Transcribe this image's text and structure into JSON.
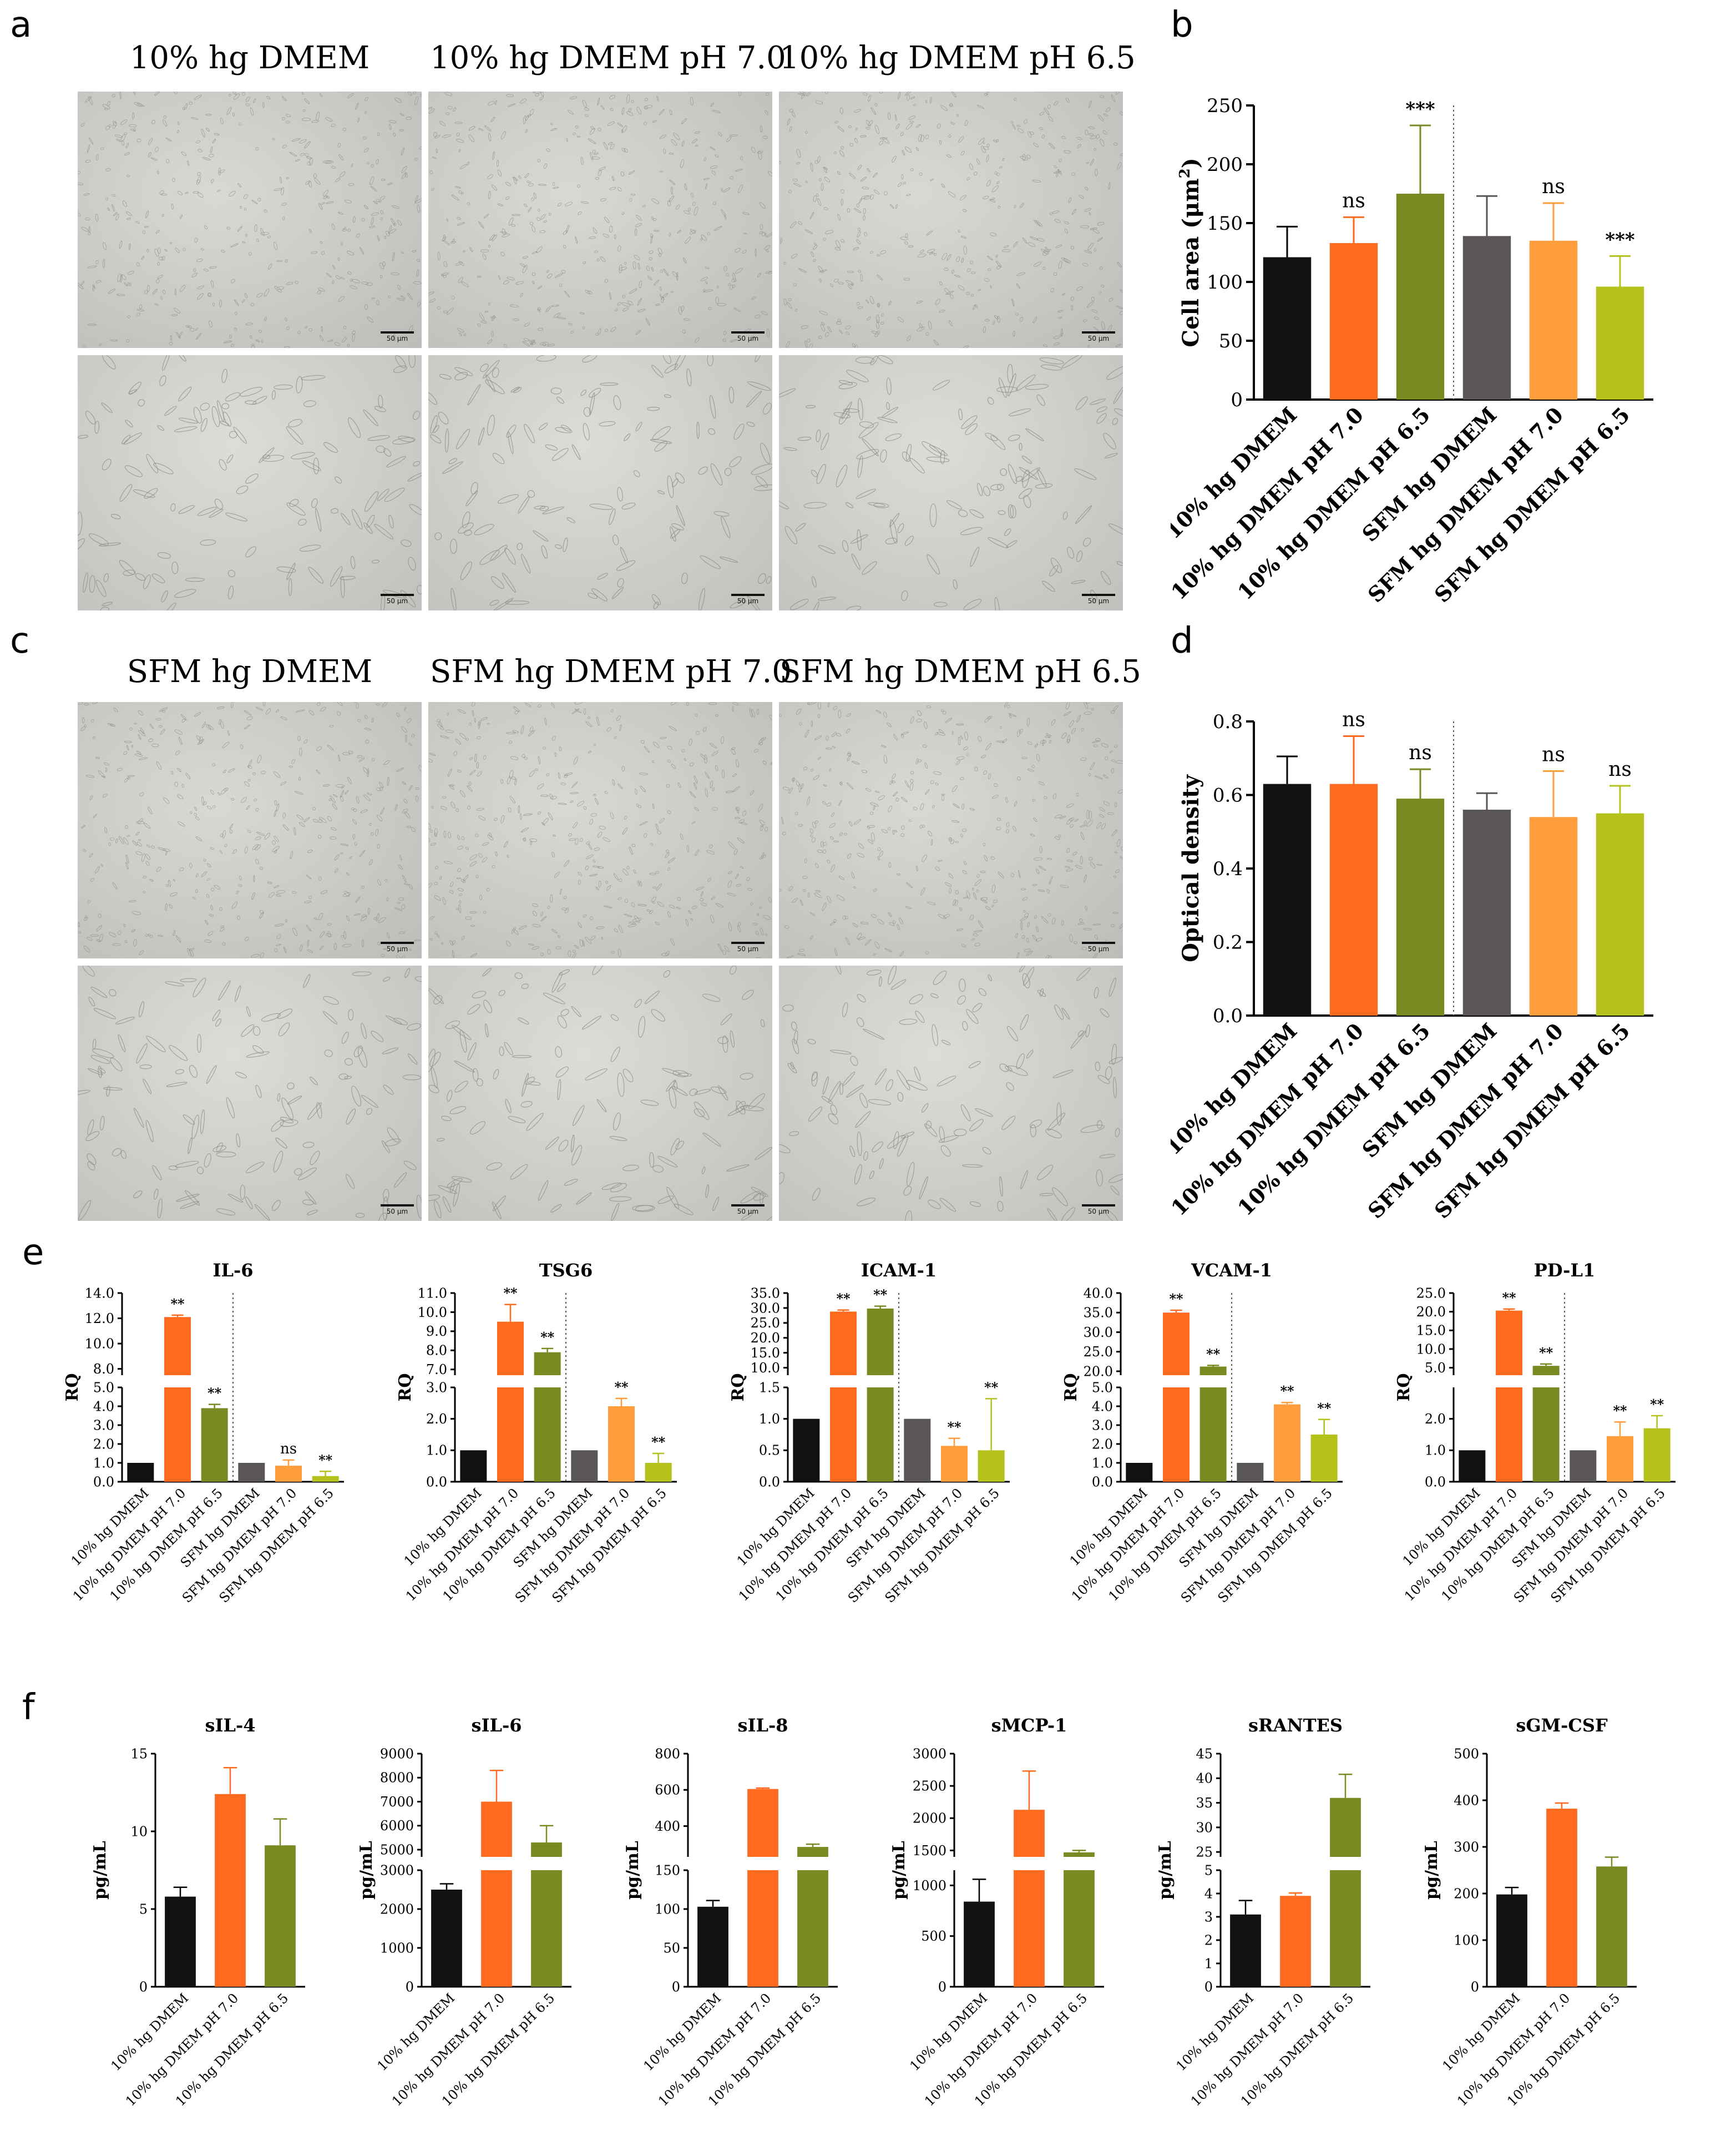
{
  "figure": {
    "panel_letters": [
      "a",
      "b",
      "c",
      "d",
      "e",
      "f"
    ],
    "scale_label": "50 μm",
    "top_conditions": [
      "10% hg DMEM",
      "10% hg DMEM pH 7.0",
      "10% hg DMEM pH 6.5"
    ],
    "sfm_conditions": [
      "SFM hg DMEM",
      "SFM hg DMEM pH 7.0",
      "SFM hg DMEM pH 6.5"
    ]
  },
  "colors": {
    "black": "#111111",
    "orange": "#ff6a1f",
    "olive": "#7a8a22",
    "gray": "#5a5656",
    "light_orange": "#ff9d3c",
    "yellow_green": "#b5c21b"
  },
  "chart_data": [
    {
      "id": "b",
      "type": "bar",
      "categories": [
        "10% hg DMEM",
        "10% hg DMEM pH 7.0",
        "10% hg DMEM pH 6.5",
        "SFM hg DMEM",
        "SFM hg DMEM pH 7.0",
        "SFM hg DMEM pH 6.5"
      ],
      "values": [
        121,
        133,
        175,
        139,
        135,
        96
      ],
      "errors": [
        26,
        22,
        58,
        34,
        32,
        26
      ],
      "annotations": [
        "",
        "ns",
        "***",
        "",
        "ns",
        "***"
      ],
      "ylabel_main": "Cell area (μm",
      "ylabel_sup": "2",
      "ylabel_end": ")",
      "ylim": [
        0,
        250
      ],
      "yticks": [
        0,
        50,
        100,
        150,
        200,
        250
      ],
      "divider_after": 3
    },
    {
      "id": "d",
      "type": "bar",
      "categories": [
        "10% hg DMEM",
        "10% hg DMEM pH 7.0",
        "10% hg DMEM pH 6.5",
        "SFM hg DMEM",
        "SFM hg DMEM pH 7.0",
        "SFM hg DMEM pH 6.5"
      ],
      "values": [
        0.63,
        0.63,
        0.59,
        0.56,
        0.54,
        0.55
      ],
      "errors": [
        0.075,
        0.13,
        0.08,
        0.045,
        0.125,
        0.075
      ],
      "annotations": [
        "",
        "ns",
        "ns",
        "",
        "ns",
        "ns"
      ],
      "ylabel": "Optical density",
      "ylim": [
        0,
        0.8
      ],
      "yticks": [
        "0.0",
        "0.2",
        "0.4",
        "0.6",
        "0.8"
      ],
      "divider_after": 3
    },
    {
      "id": "e-il6",
      "type": "bar",
      "title": "IL-6",
      "ylabel": "RQ",
      "categories": [
        "10% hg DMEM",
        "10% hg DMEM pH 7.0",
        "10% hg DMEM pH 6.5",
        "SFM hg DMEM",
        "SFM hg DMEM pH 7.0",
        "SFM hg DMEM pH 6.5"
      ],
      "values": [
        1.0,
        12.1,
        3.9,
        1.0,
        0.85,
        0.3
      ],
      "errors": [
        0,
        0.15,
        0.2,
        0,
        0.3,
        0.25
      ],
      "annotations": [
        "",
        "**",
        "**",
        "",
        "ns",
        "**"
      ],
      "lower": {
        "min": 0,
        "max": 5,
        "ticks": [
          "0.0",
          "1.0",
          "2.0",
          "3.0",
          "4.0",
          "5.0"
        ]
      },
      "upper": {
        "min": 7.5,
        "max": 14,
        "ticks": [
          "8.0",
          "10.0",
          "12.0",
          "14.0"
        ]
      },
      "divider_after": 3
    },
    {
      "id": "e-tsg6",
      "type": "bar",
      "title": "TSG6",
      "ylabel": "RQ",
      "categories": [
        "10% hg DMEM",
        "10% hg DMEM pH 7.0",
        "10% hg DMEM pH 6.5",
        "SFM hg DMEM",
        "SFM hg DMEM pH 7.0",
        "SFM hg DMEM pH 6.5"
      ],
      "values": [
        1.0,
        9.5,
        7.9,
        1.0,
        2.4,
        0.6
      ],
      "errors": [
        0,
        0.9,
        0.2,
        0,
        0.25,
        0.3
      ],
      "annotations": [
        "",
        "**",
        "**",
        "",
        "**",
        "**"
      ],
      "lower": {
        "min": 0,
        "max": 3,
        "ticks": [
          "0.0",
          "1.0",
          "2.0",
          "3.0"
        ]
      },
      "upper": {
        "min": 6.7,
        "max": 11,
        "ticks": [
          "7.0",
          "8.0",
          "9.0",
          "10.0",
          "11.0"
        ]
      },
      "divider_after": 3
    },
    {
      "id": "e-icam1",
      "type": "bar",
      "title": "ICAM-1",
      "ylabel": "RQ",
      "categories": [
        "10% hg DMEM",
        "10% hg DMEM pH 7.0",
        "10% hg DMEM pH 6.5",
        "SFM hg DMEM",
        "SFM hg DMEM pH 7.0",
        "SFM hg DMEM pH 6.5"
      ],
      "values": [
        1.0,
        28.8,
        29.8,
        1.0,
        0.57,
        0.5
      ],
      "errors": [
        0,
        0.5,
        0.8,
        0,
        0.12,
        0.82
      ],
      "annotations": [
        "",
        "**",
        "**",
        "",
        "**",
        "**"
      ],
      "lower": {
        "min": 0,
        "max": 1.5,
        "ticks": [
          "0.0",
          "0.5",
          "1.0",
          "1.5"
        ]
      },
      "upper": {
        "min": 7.5,
        "max": 35,
        "ticks": [
          "10.0",
          "15.0",
          "20.0",
          "25.0",
          "30.0",
          "35.0"
        ]
      },
      "divider_after": 3
    },
    {
      "id": "e-vcam1",
      "type": "bar",
      "title": "VCAM-1",
      "ylabel": "RQ",
      "categories": [
        "10% hg DMEM",
        "10% hg DMEM pH 7.0",
        "10% hg DMEM pH 6.5",
        "SFM hg DMEM",
        "SFM hg DMEM pH 7.0",
        "SFM hg DMEM pH 6.5"
      ],
      "values": [
        1.0,
        35.0,
        21.2,
        1.0,
        4.1,
        2.5
      ],
      "errors": [
        0,
        0.6,
        0.3,
        0,
        0.1,
        0.8
      ],
      "annotations": [
        "",
        "**",
        "**",
        "",
        "**",
        "**"
      ],
      "lower": {
        "min": 0,
        "max": 5,
        "ticks": [
          "0.0",
          "1.0",
          "2.0",
          "3.0",
          "4.0",
          "5.0"
        ]
      },
      "upper": {
        "min": 19,
        "max": 40,
        "ticks": [
          "20.0",
          "25.0",
          "30.0",
          "35.0",
          "40.0"
        ]
      },
      "divider_after": 3
    },
    {
      "id": "e-pdl1",
      "type": "bar",
      "title": "PD-L1",
      "ylabel": "RQ",
      "categories": [
        "10% hg DMEM",
        "10% hg DMEM pH 7.0",
        "10% hg DMEM pH 6.5",
        "SFM hg DMEM",
        "SFM hg DMEM pH 7.0",
        "SFM hg DMEM pH 6.5"
      ],
      "values": [
        1.0,
        20.3,
        5.5,
        1.0,
        1.45,
        1.7
      ],
      "errors": [
        0,
        0.4,
        0.5,
        0,
        0.45,
        0.4
      ],
      "annotations": [
        "",
        "**",
        "**",
        "",
        "**",
        "**"
      ],
      "lower": {
        "min": 0,
        "max": 3,
        "ticks": [
          "0.0",
          "1.0",
          "2.0"
        ]
      },
      "upper": {
        "min": 3,
        "max": 25,
        "ticks": [
          "5.0",
          "10.0",
          "15.0",
          "20.0",
          "25.0"
        ]
      },
      "divider_after": 3
    },
    {
      "id": "f-sil4",
      "type": "bar",
      "title": "sIL-4",
      "ylabel": "pg/mL",
      "categories": [
        "10% hg DMEM",
        "10% hg DMEM pH 7.0",
        "10% hg DMEM pH 6.5"
      ],
      "values": [
        5.8,
        12.4,
        9.1
      ],
      "errors": [
        0.6,
        1.7,
        1.7
      ],
      "lower": {
        "min": 0,
        "max": 15,
        "ticks": [
          "0",
          "5",
          "10",
          "15"
        ]
      }
    },
    {
      "id": "f-sil6",
      "type": "bar",
      "title": "sIL-6",
      "ylabel": "pg/mL",
      "categories": [
        "10% hg DMEM",
        "10% hg DMEM pH 7.0",
        "10% hg DMEM pH 6.5"
      ],
      "values": [
        2500,
        7000,
        5300
      ],
      "errors": [
        150,
        1300,
        700
      ],
      "lower": {
        "min": 0,
        "max": 3000,
        "ticks": [
          "0",
          "1000",
          "2000",
          "3000"
        ]
      },
      "upper": {
        "min": 4700,
        "max": 9000,
        "ticks": [
          "5000",
          "6000",
          "7000",
          "8000",
          "9000"
        ]
      }
    },
    {
      "id": "f-sil8",
      "type": "bar",
      "title": "sIL-8",
      "ylabel": "pg/mL",
      "categories": [
        "10% hg DMEM",
        "10% hg DMEM pH 7.0",
        "10% hg DMEM pH 6.5"
      ],
      "values": [
        103,
        605,
        285
      ],
      "errors": [
        8,
        5,
        15
      ],
      "lower": {
        "min": 0,
        "max": 150,
        "ticks": [
          "0",
          "50",
          "100",
          "150"
        ]
      },
      "upper": {
        "min": 230,
        "max": 800,
        "ticks": [
          "400",
          "600",
          "800"
        ]
      }
    },
    {
      "id": "f-smcp1",
      "type": "bar",
      "title": "sMCP-1",
      "ylabel": "pg/mL",
      "categories": [
        "10% hg DMEM",
        "10% hg DMEM pH 7.0",
        "10% hg DMEM pH 6.5"
      ],
      "values": [
        840,
        2130,
        1470
      ],
      "errors": [
        220,
        600,
        30
      ],
      "lower": {
        "min": 0,
        "max": 1150,
        "ticks": [
          "0",
          "500",
          "1000"
        ]
      },
      "upper": {
        "min": 1400,
        "max": 3000,
        "ticks": [
          "1500",
          "2000",
          "2500",
          "3000"
        ]
      }
    },
    {
      "id": "f-srantes",
      "type": "bar",
      "title": "sRANTES",
      "ylabel": "pg/mL",
      "categories": [
        "10% hg DMEM",
        "10% hg DMEM pH 7.0",
        "10% hg DMEM pH 6.5"
      ],
      "values": [
        3.1,
        3.9,
        36.0
      ],
      "errors": [
        0.6,
        0.12,
        4.8
      ],
      "lower": {
        "min": 0,
        "max": 5,
        "ticks": [
          "0",
          "1",
          "2",
          "3",
          "4",
          "5"
        ]
      },
      "upper": {
        "min": 24,
        "max": 45,
        "ticks": [
          "25",
          "30",
          "35",
          "40",
          "45"
        ]
      }
    },
    {
      "id": "f-sgmcsf",
      "type": "bar",
      "title": "sGM-CSF",
      "ylabel": "pg/mL",
      "categories": [
        "10% hg DMEM",
        "10% hg DMEM pH 7.0",
        "10% hg DMEM pH 6.5"
      ],
      "values": [
        198,
        382,
        258
      ],
      "errors": [
        15,
        12,
        20
      ],
      "lower": {
        "min": 0,
        "max": 500,
        "ticks": [
          "0",
          "100",
          "200",
          "300",
          "400",
          "500"
        ]
      }
    }
  ]
}
